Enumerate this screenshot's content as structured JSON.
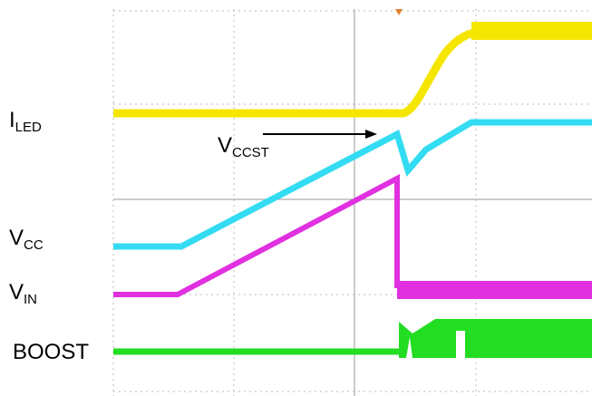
{
  "traces": {
    "i_led": {
      "main": "I",
      "sub": "LED"
    },
    "v_ccst": {
      "main": "V",
      "sub": "CCST"
    },
    "v_cc": {
      "main": "V",
      "sub": "CC"
    },
    "v_in": {
      "main": "V",
      "sub": "IN"
    },
    "boost": {
      "main": "BOOST"
    }
  }
}
